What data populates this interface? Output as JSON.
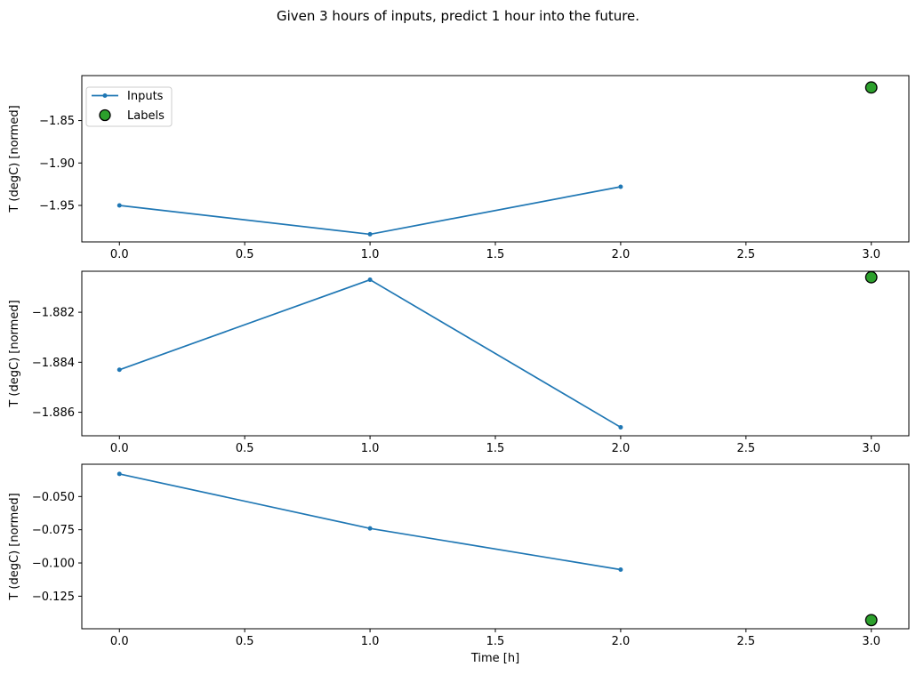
{
  "figure": {
    "title": "Given 3 hours of inputs, predict 1 hour into the future.",
    "background": "#ffffff",
    "text_color": "#000000",
    "axes_color": "#000000",
    "legend_border_color": "#cccccc"
  },
  "chart_data": [
    {
      "type": "line",
      "ylabel": "T (degC) [normed]",
      "xlabel": "",
      "x": [
        0,
        1,
        2
      ],
      "series": [
        {
          "name": "Inputs",
          "values": [
            -1.95,
            -1.984,
            -1.928
          ],
          "color": "#1f77b4",
          "marker": "point"
        }
      ],
      "labels_point": {
        "name": "Labels",
        "x": [
          3
        ],
        "values": [
          -1.811
        ],
        "fill": "#2ca02c",
        "edge": "#000000"
      },
      "xlim": [
        -0.15,
        3.15
      ],
      "ylim": [
        -1.993,
        -1.797
      ],
      "xticks": [
        0.0,
        0.5,
        1.0,
        1.5,
        2.0,
        2.5,
        3.0
      ],
      "xtick_labels": [
        "0.0",
        "0.5",
        "1.0",
        "1.5",
        "2.0",
        "2.5",
        "3.0"
      ],
      "yticks": [
        -1.85,
        -1.9,
        -1.95
      ],
      "ytick_labels": [
        "−1.85",
        "−1.90",
        "−1.95"
      ],
      "grid": false,
      "legend": {
        "visible": true,
        "location": "upper left",
        "entries": [
          "Inputs",
          "Labels"
        ]
      }
    },
    {
      "type": "line",
      "ylabel": "T (degC) [normed]",
      "xlabel": "",
      "x": [
        0,
        1,
        2
      ],
      "series": [
        {
          "name": "Inputs",
          "values": [
            -1.8843,
            -1.8807,
            -1.8866
          ],
          "color": "#1f77b4",
          "marker": "point"
        }
      ],
      "labels_point": {
        "name": "Labels",
        "x": [
          3
        ],
        "values": [
          -1.8806
        ],
        "fill": "#2ca02c",
        "edge": "#000000"
      },
      "xlim": [
        -0.15,
        3.15
      ],
      "ylim": [
        -1.88694,
        -1.88036
      ],
      "xticks": [
        0.0,
        0.5,
        1.0,
        1.5,
        2.0,
        2.5,
        3.0
      ],
      "xtick_labels": [
        "0.0",
        "0.5",
        "1.0",
        "1.5",
        "2.0",
        "2.5",
        "3.0"
      ],
      "yticks": [
        -1.882,
        -1.884,
        -1.886
      ],
      "ytick_labels": [
        "−1.882",
        "−1.884",
        "−1.886"
      ],
      "grid": false,
      "legend": {
        "visible": false,
        "entries": []
      }
    },
    {
      "type": "line",
      "ylabel": "T (degC) [normed]",
      "xlabel": "Time [h]",
      "x": [
        0,
        1,
        2
      ],
      "series": [
        {
          "name": "Inputs",
          "values": [
            -0.033,
            -0.074,
            -0.105
          ],
          "color": "#1f77b4",
          "marker": "point"
        }
      ],
      "labels_point": {
        "name": "Labels",
        "x": [
          3
        ],
        "values": [
          -0.143
        ],
        "fill": "#2ca02c",
        "edge": "#000000"
      },
      "xlim": [
        -0.15,
        3.15
      ],
      "ylim": [
        -0.1495,
        -0.0257
      ],
      "xticks": [
        0.0,
        0.5,
        1.0,
        1.5,
        2.0,
        2.5,
        3.0
      ],
      "xtick_labels": [
        "0.0",
        "0.5",
        "1.0",
        "1.5",
        "2.0",
        "2.5",
        "3.0"
      ],
      "yticks": [
        -0.05,
        -0.075,
        -0.1,
        -0.125
      ],
      "ytick_labels": [
        "−0.050",
        "−0.075",
        "−0.100",
        "−0.125"
      ],
      "grid": false,
      "legend": {
        "visible": false,
        "entries": []
      }
    }
  ]
}
